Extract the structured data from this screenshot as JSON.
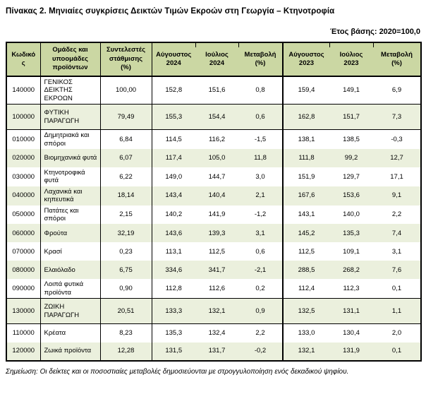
{
  "title": "Πίνακας 2. Μηνιαίες συγκρίσεις Δεικτών Τιμών Εκροών στη Γεωργία – Κτηνοτροφία",
  "base_year_label": "Έτος βάσης: 2020=100,0",
  "note": "Σημείωση: Οι δείκτες και οι ποσοστιαίες μεταβολές δημοσιεύονται με στρογγυλοποίηση ενός δεκαδικού ψηφίου.",
  "colors": {
    "header_bg": "#cbd7a3",
    "row_alt_bg": "#ebf0dd",
    "border": "#000000"
  },
  "table": {
    "columns": [
      "Κωδικός",
      "Ομάδες και υποομάδες προϊόντων",
      "Συντελεστές στάθμισης (%)",
      "Αύγουστος 2024",
      "Ιούλιος 2024",
      "Μεταβολή (%)",
      "Αύγουστος 2023",
      "Ιούλιος 2023",
      "Μεταβολή (%)"
    ],
    "rows": [
      {
        "code": "140000",
        "name": "ΓΕΝΙΚΟΣ ΔΕΙΚΤΗΣ ΕΚΡΟΩΝ",
        "weight": "100,00",
        "aug_2024": "152,8",
        "jul_2024": "151,6",
        "change_2024": "0,8",
        "aug_2023": "159,4",
        "jul_2023": "149,1",
        "change_2023": "6,9",
        "level": "total"
      },
      {
        "code": "100000",
        "name": "ΦΥΤΙΚΗ ΠΑΡΑΓΩΓΗ",
        "weight": "79,49",
        "aug_2024": "155,3",
        "jul_2024": "154,4",
        "change_2024": "0,6",
        "aug_2023": "162,8",
        "jul_2023": "151,7",
        "change_2023": "7,3",
        "level": "group"
      },
      {
        "code": "010000",
        "name": "Δημητριακά και σπόροι",
        "weight": "6,84",
        "aug_2024": "114,5",
        "jul_2024": "116,2",
        "change_2024": "-1,5",
        "aug_2023": "138,1",
        "jul_2023": "138,5",
        "change_2023": "-0,3",
        "level": "sub"
      },
      {
        "code": "020000",
        "name": "Βιομηχανικά φυτά",
        "weight": "6,07",
        "aug_2024": "117,4",
        "jul_2024": "105,0",
        "change_2024": "11,8",
        "aug_2023": "111,8",
        "jul_2023": "99,2",
        "change_2023": "12,7",
        "level": "sub"
      },
      {
        "code": "030000",
        "name": "Κτηνοτροφικά φυτά",
        "weight": "6,22",
        "aug_2024": "149,0",
        "jul_2024": "144,7",
        "change_2024": "3,0",
        "aug_2023": "151,9",
        "jul_2023": "129,7",
        "change_2023": "17,1",
        "level": "sub"
      },
      {
        "code": "040000",
        "name": "Λαχανικά και κηπευτικά",
        "weight": "18,14",
        "aug_2024": "143,4",
        "jul_2024": "140,4",
        "change_2024": "2,1",
        "aug_2023": "167,6",
        "jul_2023": "153,6",
        "change_2023": "9,1",
        "level": "sub"
      },
      {
        "code": "050000",
        "name": "Πατάτες και σπόροι",
        "weight": "2,15",
        "aug_2024": "140,2",
        "jul_2024": "141,9",
        "change_2024": "-1,2",
        "aug_2023": "143,1",
        "jul_2023": "140,0",
        "change_2023": "2,2",
        "level": "sub"
      },
      {
        "code": "060000",
        "name": "Φρούτα",
        "weight": "32,19",
        "aug_2024": "143,6",
        "jul_2024": "139,3",
        "change_2024": "3,1",
        "aug_2023": "145,2",
        "jul_2023": "135,3",
        "change_2023": "7,4",
        "level": "sub"
      },
      {
        "code": "070000",
        "name": "Κρασί",
        "weight": "0,23",
        "aug_2024": "113,1",
        "jul_2024": "112,5",
        "change_2024": "0,6",
        "aug_2023": "112,5",
        "jul_2023": "109,1",
        "change_2023": "3,1",
        "level": "sub"
      },
      {
        "code": "080000",
        "name": "Ελαιόλαδο",
        "weight": "6,75",
        "aug_2024": "334,6",
        "jul_2024": "341,7",
        "change_2024": "-2,1",
        "aug_2023": "288,5",
        "jul_2023": "268,2",
        "change_2023": "7,6",
        "level": "sub"
      },
      {
        "code": "090000",
        "name": "Λοιπά φυτικά προϊόντα",
        "weight": "0,90",
        "aug_2024": "112,8",
        "jul_2024": "112,6",
        "change_2024": "0,2",
        "aug_2023": "112,4",
        "jul_2023": "112,3",
        "change_2023": "0,1",
        "level": "sub"
      },
      {
        "code": "130000",
        "name": "ΖΩΙΚΗ ΠΑΡΑΓΩΓΗ",
        "weight": "20,51",
        "aug_2024": "133,3",
        "jul_2024": "132,1",
        "change_2024": "0,9",
        "aug_2023": "132,5",
        "jul_2023": "131,1",
        "change_2023": "1,1",
        "level": "group"
      },
      {
        "code": "110000",
        "name": "Κρέατα",
        "weight": "8,23",
        "aug_2024": "135,3",
        "jul_2024": "132,4",
        "change_2024": "2,2",
        "aug_2023": "133,0",
        "jul_2023": "130,4",
        "change_2023": "2,0",
        "level": "sub"
      },
      {
        "code": "120000",
        "name": "Ζωικά προϊόντα",
        "weight": "12,28",
        "aug_2024": "131,5",
        "jul_2024": "131,7",
        "change_2024": "-0,2",
        "aug_2023": "132,1",
        "jul_2023": "131,9",
        "change_2023": "0,1",
        "level": "sub"
      }
    ]
  }
}
